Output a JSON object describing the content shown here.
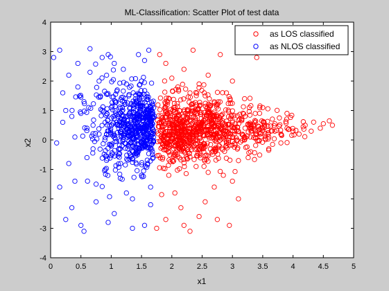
{
  "chart_data": {
    "type": "scatter",
    "title": "ML-Classification: Scatter Plot of test data",
    "xlabel": "x1",
    "ylabel": "x2",
    "xlim": [
      0,
      5
    ],
    "ylim": [
      -4,
      4
    ],
    "xticks": [
      0,
      0.5,
      1,
      1.5,
      2,
      2.5,
      3,
      3.5,
      4,
      4.5,
      5
    ],
    "xtick_labels": [
      "0",
      "0.5",
      "1",
      "1.5",
      "2",
      "2.5",
      "3",
      "3.5",
      "4",
      "4.5",
      "5"
    ],
    "yticks": [
      4,
      3,
      2,
      1,
      0,
      -1,
      -2,
      -3,
      -4
    ],
    "ytick_labels": [
      "4",
      "3",
      "2",
      "1",
      "0",
      "-1",
      "-2",
      "-3",
      "-4"
    ],
    "grid": false,
    "legend": "top-right",
    "marker": "open-circle",
    "decision_boundary_x": 1.72,
    "series": [
      {
        "name": "as LOS classified",
        "color": "#ff0000",
        "points": [
          [
            1.8,
            0.6
          ],
          [
            1.9,
            1.1
          ],
          [
            2.0,
            0.3
          ],
          [
            2.1,
            -0.2
          ],
          [
            2.2,
            0.8
          ],
          [
            2.3,
            0.1
          ],
          [
            2.4,
            0.5
          ],
          [
            2.5,
            -0.3
          ],
          [
            2.6,
            0.9
          ],
          [
            2.7,
            0.2
          ],
          [
            2.8,
            0.4
          ],
          [
            2.9,
            -0.1
          ],
          [
            3.0,
            0.6
          ],
          [
            3.1,
            0.3
          ],
          [
            3.2,
            0.0
          ],
          [
            3.3,
            0.5
          ],
          [
            3.4,
            0.2
          ],
          [
            3.5,
            0.4
          ],
          [
            3.6,
            0.1
          ],
          [
            3.7,
            0.3
          ],
          [
            3.8,
            0.2
          ],
          [
            3.9,
            0.4
          ],
          [
            4.0,
            0.3
          ],
          [
            4.1,
            0.2
          ],
          [
            4.2,
            0.5
          ],
          [
            4.45,
            0.4
          ],
          [
            4.5,
            0.55
          ],
          [
            4.6,
            0.65
          ],
          [
            4.65,
            0.5
          ],
          [
            4.3,
            0.3
          ],
          [
            1.85,
            -0.6
          ],
          [
            1.95,
            -1.2
          ],
          [
            2.05,
            -1.8
          ],
          [
            2.15,
            -2.3
          ],
          [
            2.2,
            -2.9
          ],
          [
            2.3,
            -3.1
          ],
          [
            2.45,
            -2.6
          ],
          [
            2.55,
            -2.1
          ],
          [
            2.7,
            -1.6
          ],
          [
            2.85,
            -1.2
          ],
          [
            1.8,
            2.9
          ],
          [
            1.9,
            2.6
          ],
          [
            2.0,
            2.1
          ],
          [
            2.1,
            1.8
          ],
          [
            2.2,
            2.4
          ],
          [
            2.3,
            1.6
          ],
          [
            2.45,
            1.9
          ],
          [
            2.55,
            1.5
          ],
          [
            2.7,
            1.3
          ],
          [
            2.9,
            1.6
          ],
          [
            3.2,
            1.4
          ],
          [
            3.5,
            1.1
          ],
          [
            3.9,
            0.9
          ],
          [
            3.4,
            2.8
          ],
          [
            2.35,
            3.05
          ],
          [
            2.6,
            2.2
          ],
          [
            3.0,
            2.0
          ],
          [
            2.8,
            2.9
          ],
          [
            3.1,
            -0.7
          ],
          [
            3.3,
            -0.4
          ],
          [
            3.6,
            -0.3
          ],
          [
            3.8,
            -0.1
          ],
          [
            2.4,
            -0.9
          ],
          [
            2.6,
            -1.1
          ],
          [
            3.0,
            -1.4
          ],
          [
            3.1,
            -2.0
          ],
          [
            2.75,
            -2.7
          ],
          [
            2.95,
            -2.9
          ],
          [
            1.75,
            -3.0
          ],
          [
            1.9,
            -2.7
          ]
        ]
      },
      {
        "name": "as NLOS classified",
        "color": "#0000ff",
        "points": [
          [
            0.05,
            2.8
          ],
          [
            0.1,
            -0.1
          ],
          [
            0.15,
            3.05
          ],
          [
            0.2,
            1.6
          ],
          [
            0.25,
            -2.7
          ],
          [
            0.3,
            2.2
          ],
          [
            0.35,
            0.8
          ],
          [
            0.4,
            -1.4
          ],
          [
            0.45,
            2.6
          ],
          [
            0.5,
            -2.9
          ],
          [
            0.55,
            1.3
          ],
          [
            0.6,
            -0.6
          ],
          [
            0.65,
            3.1
          ],
          [
            0.7,
            0.5
          ],
          [
            0.75,
            -2.1
          ],
          [
            0.8,
            2.0
          ],
          [
            0.85,
            1.0
          ],
          [
            0.9,
            -1.0
          ],
          [
            0.95,
            2.9
          ],
          [
            1.0,
            0.2
          ],
          [
            1.05,
            -2.5
          ],
          [
            1.1,
            1.7
          ],
          [
            1.15,
            -0.3
          ],
          [
            1.2,
            2.4
          ],
          [
            1.25,
            -1.8
          ],
          [
            1.3,
            0.9
          ],
          [
            1.35,
            -3.0
          ],
          [
            1.4,
            1.4
          ],
          [
            1.45,
            0.4
          ],
          [
            1.5,
            -1.2
          ],
          [
            1.55,
            2.7
          ],
          [
            1.6,
            0.7
          ],
          [
            1.65,
            -2.2
          ],
          [
            1.7,
            1.1
          ],
          [
            1.7,
            0.3
          ],
          [
            1.68,
            -0.4
          ],
          [
            1.6,
            -0.8
          ],
          [
            1.5,
            0.1
          ],
          [
            1.4,
            0.6
          ],
          [
            1.3,
            0.3
          ],
          [
            1.2,
            0.8
          ],
          [
            1.1,
            0.5
          ],
          [
            1.0,
            1.1
          ],
          [
            0.9,
            0.6
          ],
          [
            0.8,
            0.2
          ],
          [
            0.7,
            -0.3
          ],
          [
            0.6,
            0.4
          ],
          [
            0.5,
            0.9
          ],
          [
            0.4,
            0.1
          ],
          [
            0.3,
            -0.8
          ],
          [
            0.2,
            0.6
          ],
          [
            0.15,
            -1.6
          ],
          [
            0.35,
            -2.3
          ],
          [
            0.55,
            -3.1
          ],
          [
            0.75,
            -1.5
          ],
          [
            0.95,
            -2.8
          ],
          [
            1.15,
            -1.3
          ],
          [
            1.35,
            -2.0
          ],
          [
            1.55,
            -2.9
          ],
          [
            1.65,
            -1.6
          ],
          [
            0.25,
            1.0
          ],
          [
            0.45,
            1.8
          ],
          [
            0.65,
            2.3
          ],
          [
            0.85,
            2.8
          ],
          [
            1.05,
            2.6
          ],
          [
            1.25,
            1.9
          ],
          [
            1.45,
            2.9
          ],
          [
            1.62,
            3.05
          ],
          [
            1.5,
            2.0
          ],
          [
            1.4,
            1.0
          ]
        ]
      }
    ]
  }
}
